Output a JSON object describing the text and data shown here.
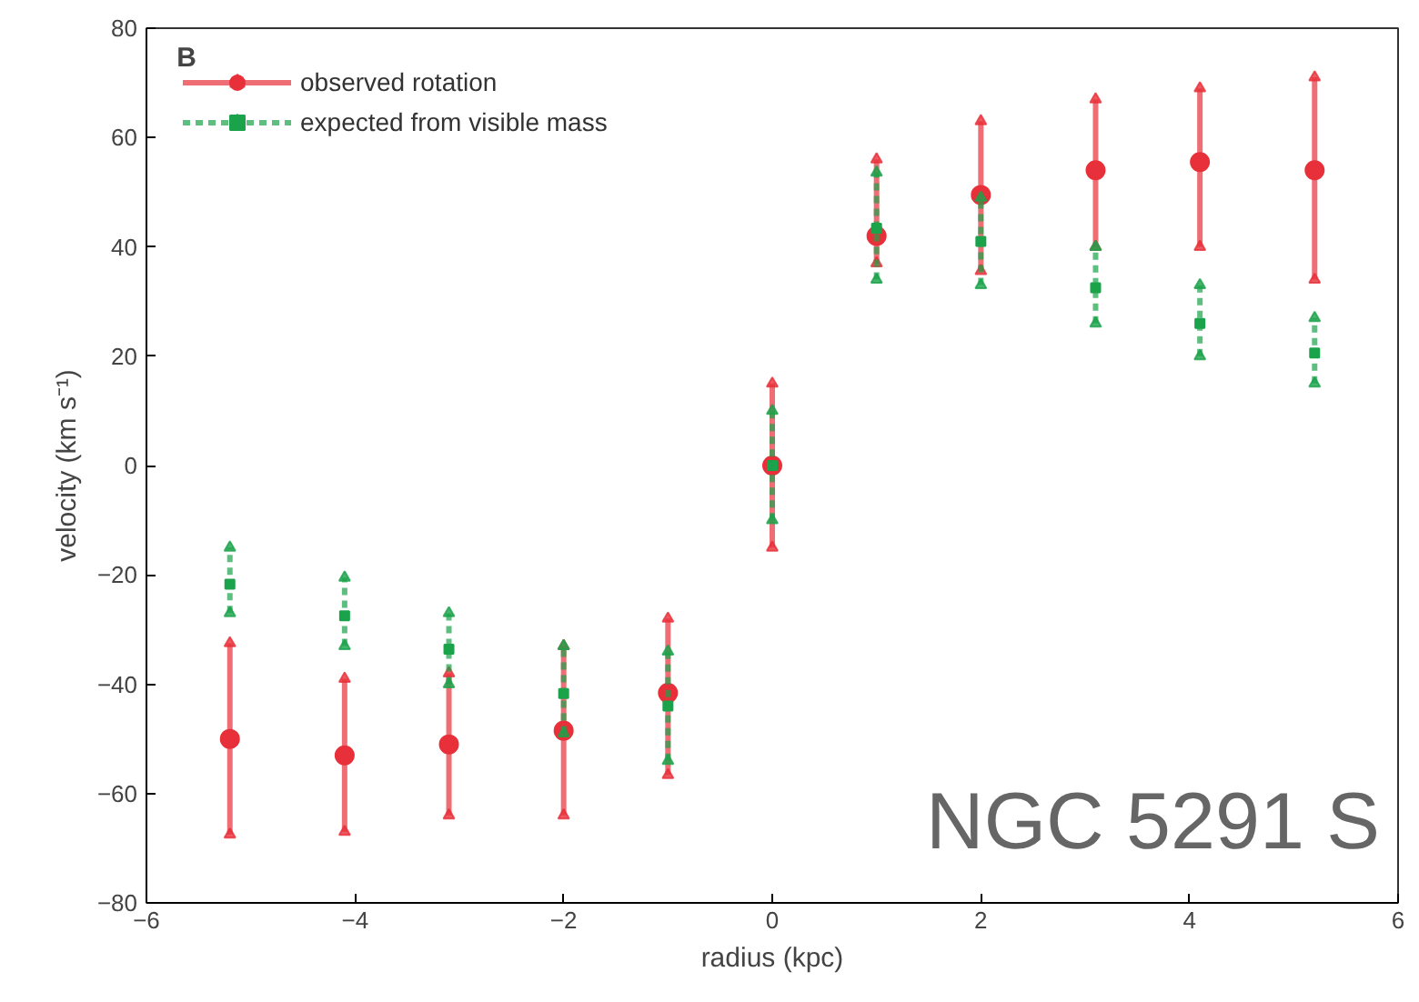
{
  "chart_data": {
    "type": "scatter",
    "xlabel": "radius (kpc)",
    "ylabel": "velocity (km s⁻¹)",
    "xlim": [
      -6,
      6
    ],
    "ylim": [
      -80,
      80
    ],
    "xticks": [
      -6,
      -4,
      -2,
      0,
      2,
      4,
      6
    ],
    "yticks": [
      -80,
      -60,
      -40,
      -20,
      0,
      20,
      40,
      60,
      80
    ],
    "grid": false,
    "legend": "top left",
    "annotations": [
      "B",
      "NGC 5291 S"
    ],
    "x": [
      -5.2,
      -4.1,
      -3.1,
      -2,
      -1,
      0,
      1,
      2,
      3.1,
      4.1,
      5.2
    ],
    "series": [
      {
        "name": "observed rotation",
        "color": "#e8303a",
        "marker": "circle",
        "line_style": "solid",
        "values": [
          -50,
          -53,
          -51,
          -48.5,
          -41.6,
          0,
          42,
          49.5,
          54,
          55.5,
          54
        ],
        "errors": [
          [
            -67.5,
            -32.5
          ],
          [
            -67,
            -39
          ],
          [
            -64,
            -38
          ],
          [
            -64,
            -33
          ],
          [
            -56.6,
            -28
          ],
          [
            -15,
            15
          ],
          [
            37,
            56
          ],
          [
            35.6,
            63
          ],
          [
            40,
            67
          ],
          [
            40,
            69
          ],
          [
            34,
            71
          ]
        ]
      },
      {
        "name": "expected from visible mass",
        "color": "#1aa34a",
        "marker": "square",
        "line_style": "dashed",
        "values": [
          -21.7,
          -27.5,
          -33.6,
          -41.7,
          -44,
          0,
          43.4,
          41,
          32.5,
          26,
          20.6
        ],
        "errors": [
          [
            -27,
            -15
          ],
          [
            -33,
            -20.5
          ],
          [
            -40,
            -27
          ],
          [
            -49,
            -33
          ],
          [
            -54,
            -34
          ],
          [
            -10,
            10
          ],
          [
            34,
            53.6
          ],
          [
            33,
            49
          ],
          [
            26,
            40
          ],
          [
            20,
            33
          ],
          [
            15,
            27
          ]
        ]
      }
    ]
  }
}
